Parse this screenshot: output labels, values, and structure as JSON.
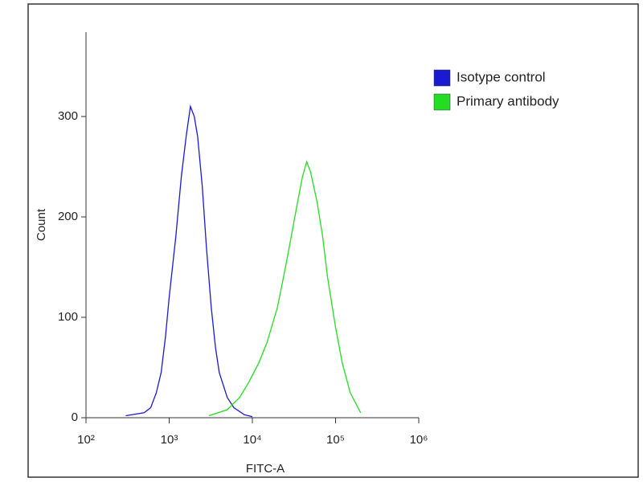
{
  "chart_data": {
    "type": "line",
    "xlabel": "FITC-A",
    "ylabel": "Count",
    "xscale": "log",
    "xlim": [
      100,
      1000000
    ],
    "xticks": [
      {
        "value": 100,
        "label": "10²"
      },
      {
        "value": 1000,
        "label": "10³"
      },
      {
        "value": 10000,
        "label": "10⁴"
      },
      {
        "value": 100000,
        "label": "10⁵"
      },
      {
        "value": 1000000,
        "label": "10⁶"
      }
    ],
    "ylim": [
      0,
      384
    ],
    "yticks": [
      0,
      100,
      200,
      300
    ],
    "legend": "upper right outside",
    "series": [
      {
        "name": "Isotype control",
        "color": "#1a1ad0",
        "x": [
          300,
          500,
          600,
          700,
          800,
          900,
          1000,
          1200,
          1400,
          1600,
          1800,
          2000,
          2200,
          2500,
          2800,
          3200,
          3600,
          4000,
          5000,
          6000,
          8000,
          10000
        ],
        "values": [
          2,
          5,
          10,
          25,
          45,
          80,
          120,
          180,
          240,
          280,
          310,
          300,
          280,
          230,
          170,
          110,
          70,
          45,
          20,
          10,
          3,
          1
        ]
      },
      {
        "name": "Primary antibody",
        "color": "#22dd22",
        "x": [
          3000,
          5000,
          7000,
          9000,
          12000,
          15000,
          20000,
          25000,
          30000,
          35000,
          40000,
          45000,
          50000,
          60000,
          70000,
          80000,
          100000,
          120000,
          150000,
          200000
        ],
        "values": [
          2,
          8,
          20,
          35,
          55,
          75,
          110,
          150,
          185,
          215,
          240,
          255,
          245,
          215,
          180,
          140,
          90,
          55,
          25,
          5
        ]
      }
    ]
  }
}
